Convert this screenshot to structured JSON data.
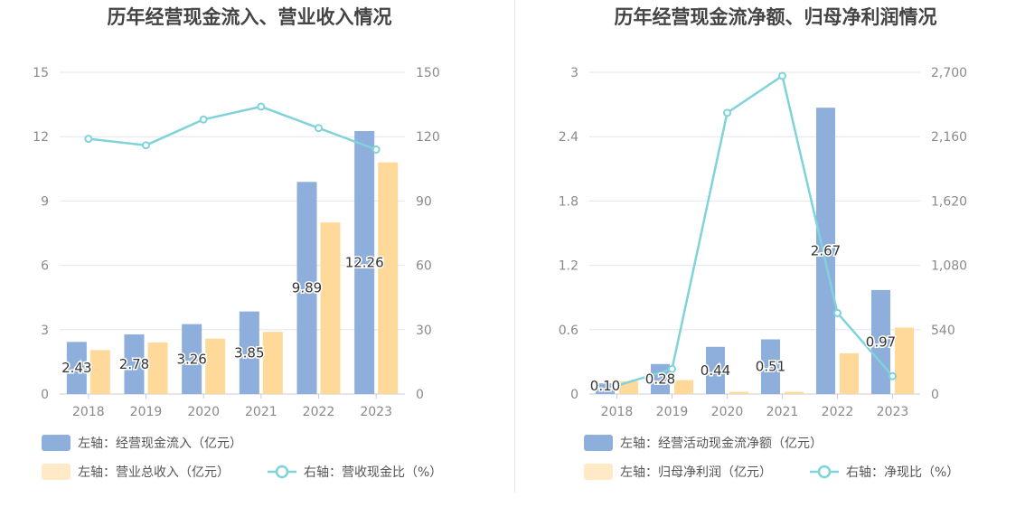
{
  "colors": {
    "bar_primary": "#8eaedb",
    "bar_secondary": "#ffd99a",
    "legend_secondary": "#ffe9c6",
    "line": "#7fd3d9",
    "grid": "#e3e6ef",
    "axis_text": "#8a8a8a",
    "title": "#444444"
  },
  "chart_data": [
    {
      "type": "bar",
      "title": "历年经营现金流入、营业收入情况",
      "categories": [
        "2018",
        "2019",
        "2020",
        "2021",
        "2022",
        "2023"
      ],
      "y_left_ticks": [
        "0",
        "3",
        "6",
        "9",
        "12",
        "15"
      ],
      "y_right_ticks": [
        "0",
        "30",
        "60",
        "90",
        "120",
        "150"
      ],
      "ylim_left": [
        0,
        15
      ],
      "ylim_right": [
        0,
        150
      ],
      "grid": true,
      "legend_position": "bottom-left",
      "series": [
        {
          "name": "左轴：经营现金流入（亿元）",
          "type": "bar",
          "axis": "left",
          "values": [
            2.43,
            2.78,
            3.26,
            3.85,
            9.89,
            12.26
          ],
          "labels": [
            "2.43",
            "2.78",
            "3.26",
            "3.85",
            "9.89",
            "12.26"
          ]
        },
        {
          "name": "左轴：营业总收入（亿元）",
          "type": "bar",
          "axis": "left",
          "values": [
            2.05,
            2.4,
            2.58,
            2.9,
            8.0,
            10.8
          ]
        },
        {
          "name": "右轴：营收现金比（%）",
          "type": "line",
          "axis": "right",
          "values": [
            119,
            116,
            128,
            134,
            124,
            114
          ]
        }
      ]
    },
    {
      "type": "bar",
      "title": "历年经营现金流净额、归母净利润情况",
      "categories": [
        "2018",
        "2019",
        "2020",
        "2021",
        "2022",
        "2023"
      ],
      "y_left_ticks": [
        "0",
        "0.6",
        "1.2",
        "1.8",
        "2.4",
        "3"
      ],
      "y_right_ticks": [
        "0",
        "540",
        "1,080",
        "1,620",
        "2,160",
        "2,700"
      ],
      "ylim_left": [
        0,
        3
      ],
      "ylim_right": [
        0,
        2700
      ],
      "grid": true,
      "legend_position": "bottom-left",
      "series": [
        {
          "name": "左轴：经营活动现金流净额（亿元）",
          "type": "bar",
          "axis": "left",
          "values": [
            0.1,
            0.28,
            0.44,
            0.51,
            2.67,
            0.97
          ],
          "labels": [
            "0.10",
            "0.28",
            "0.44",
            "0.51",
            "2.67",
            "0.97"
          ]
        },
        {
          "name": "左轴：归母净利润（亿元）",
          "type": "bar",
          "axis": "left",
          "values": [
            0.12,
            0.13,
            0.02,
            0.02,
            0.38,
            0.62
          ]
        },
        {
          "name": "右轴：净现比（%）",
          "type": "line",
          "axis": "right",
          "values": [
            70,
            210,
            2360,
            2670,
            680,
            150
          ]
        }
      ]
    }
  ]
}
